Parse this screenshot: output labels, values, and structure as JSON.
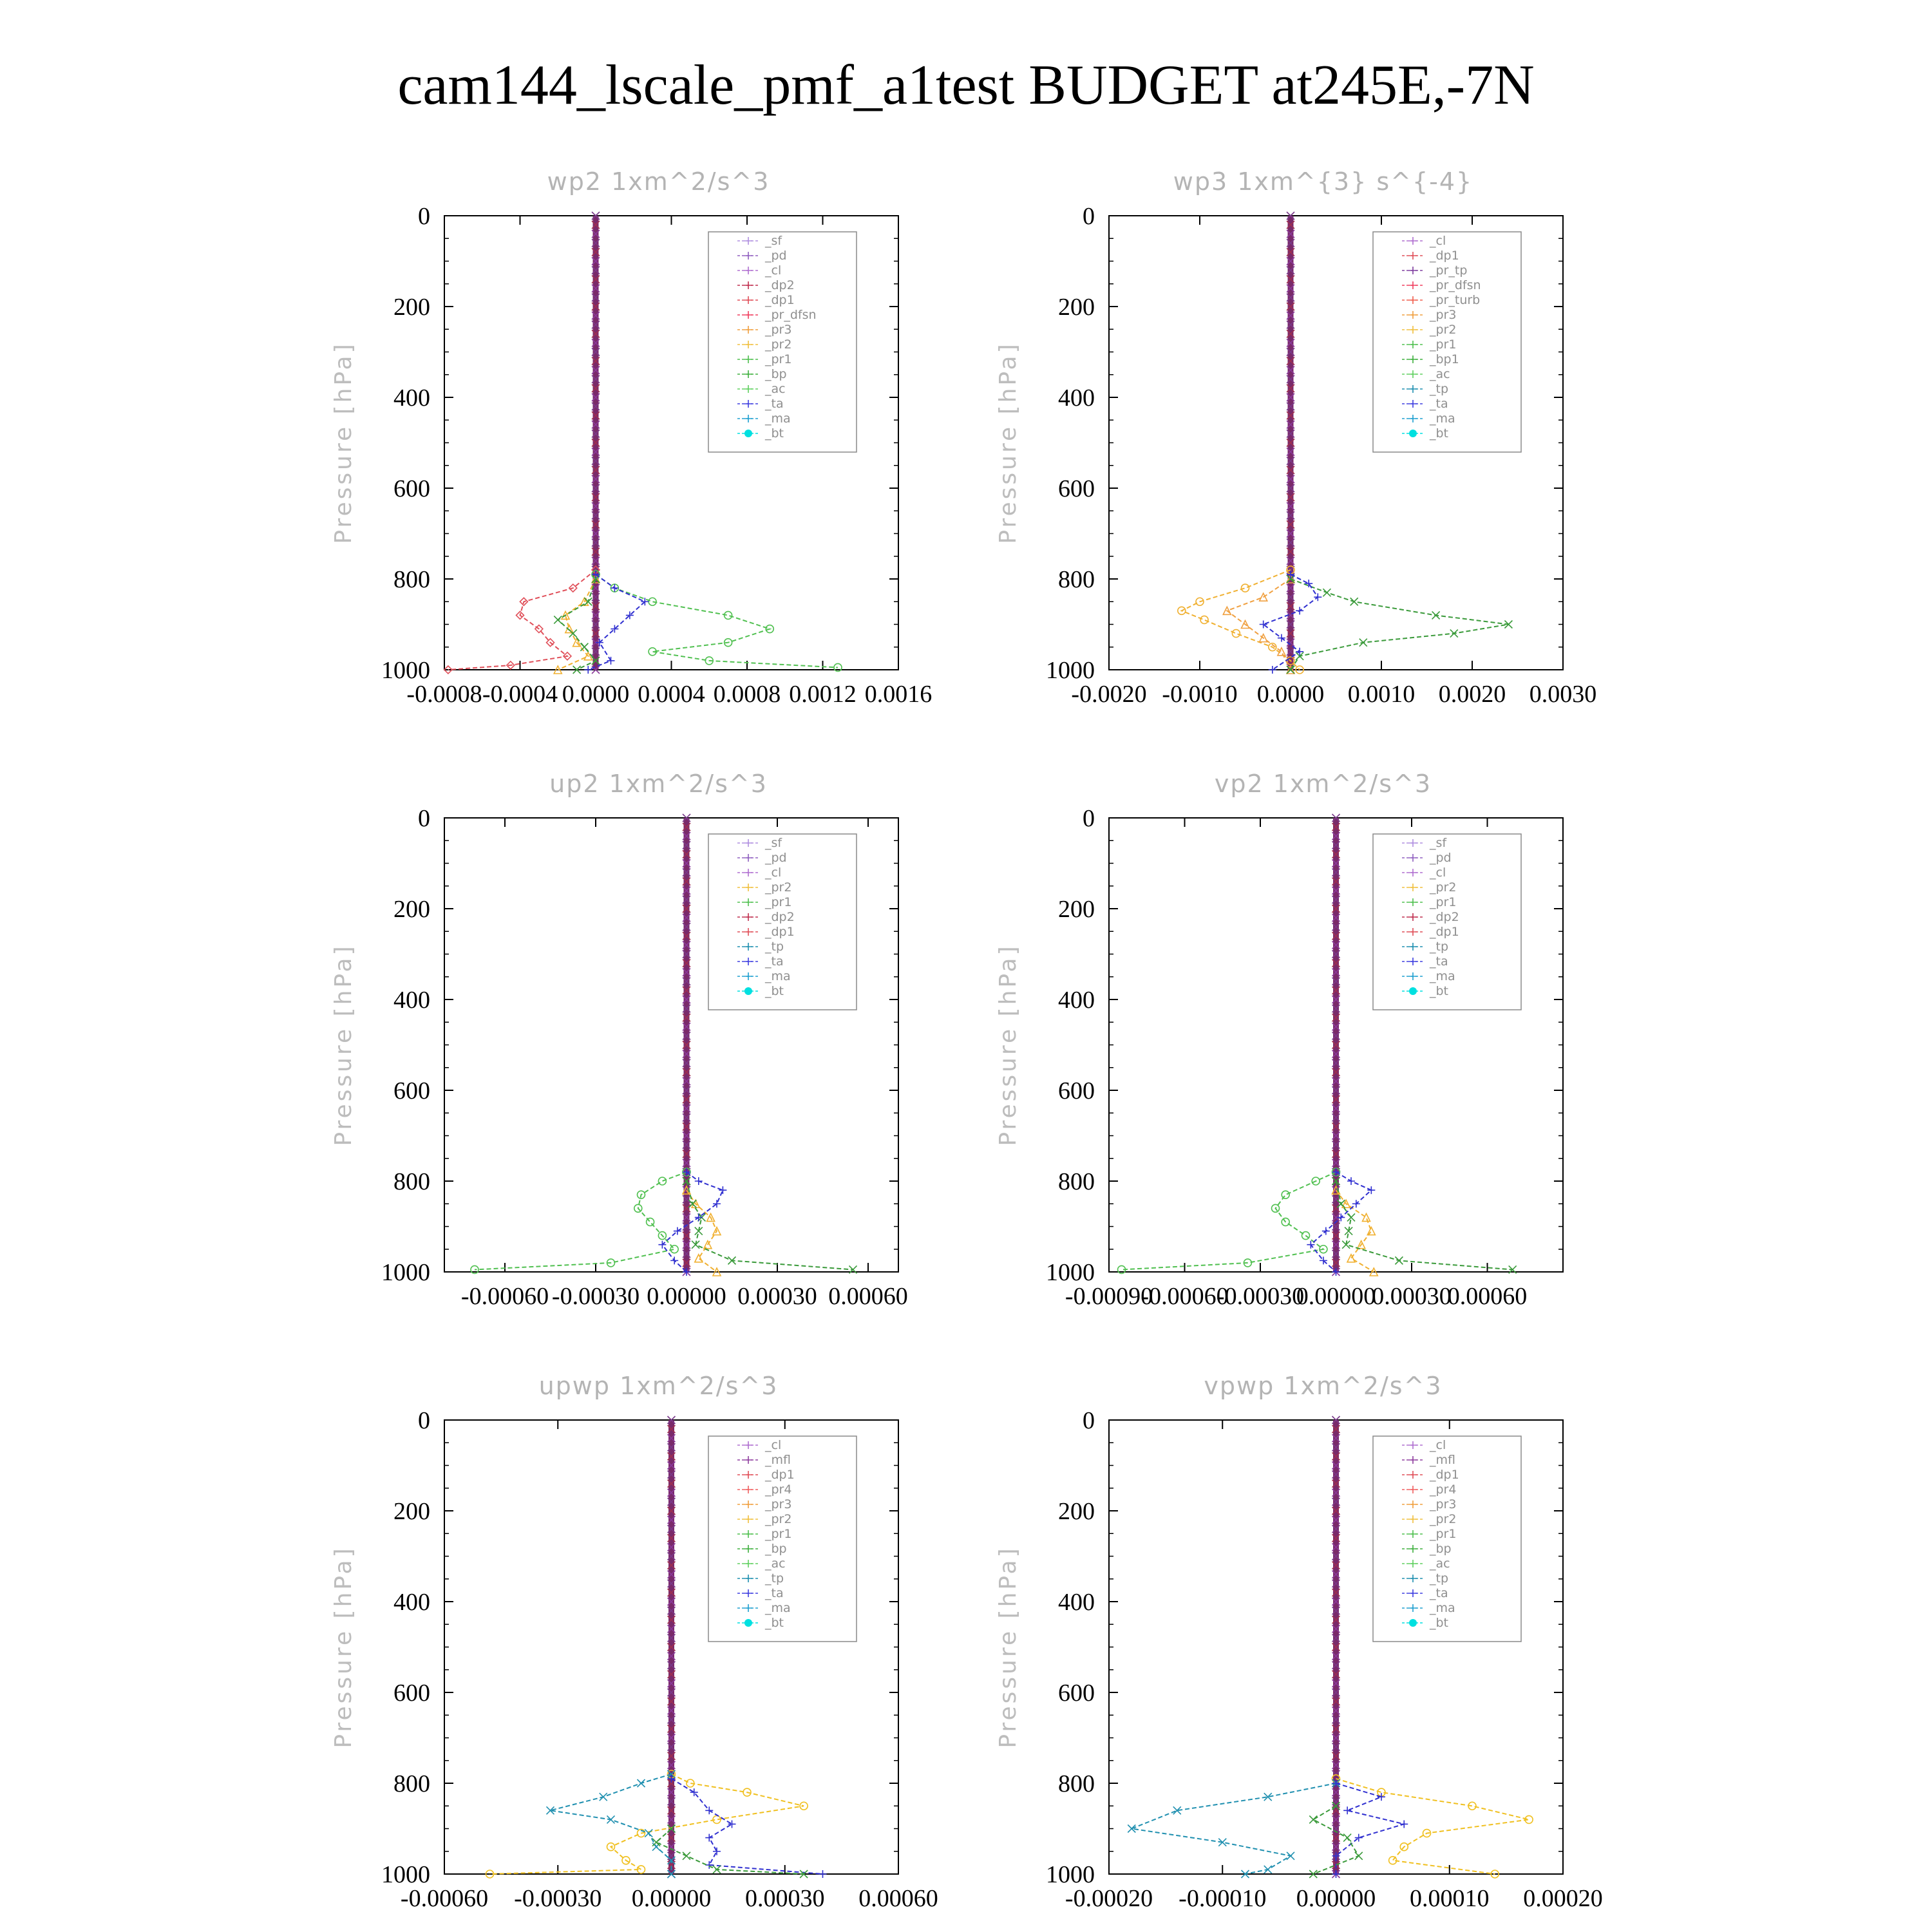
{
  "title": "cam144_lscale_pmf_a1test  BUDGET at245E,-7N",
  "chart_data": [
    {
      "type": "line",
      "title": "wp2   1xm^2/s^3",
      "ylabel": "Pressure [hPa]",
      "xlim": [
        -0.0008,
        0.0016
      ],
      "ylim": [
        0,
        1000
      ],
      "x_ticks": [
        "-0.0008",
        "-0.0004",
        "0.0000",
        "0.0004",
        "0.0008",
        "0.0012",
        "0.0016"
      ],
      "y_ticks": [
        "0",
        "200",
        "400",
        "600",
        "800",
        "1000"
      ],
      "legend": [
        "_sf",
        "_pd",
        "_cl",
        "_dp2",
        "_dp1",
        "_pr_dfsn",
        "_pr3",
        "_pr2",
        "_pr1",
        "_bp",
        "_ac",
        "_ta",
        "_ma",
        "_bt"
      ],
      "legend_position": "top-right",
      "series": [
        {
          "name": "_dp1",
          "color": "#e0505a",
          "marker": "diamond",
          "p": [
            780,
            820,
            850,
            880,
            910,
            940,
            970,
            990,
            1000
          ],
          "x": [
            0,
            -0.00012,
            -0.00038,
            -0.0004,
            -0.0003,
            -0.00024,
            -0.00015,
            -0.00045,
            -0.00078
          ]
        },
        {
          "name": "_pr3",
          "color": "#f0b030",
          "marker": "triangle",
          "p": [
            800,
            850,
            880,
            910,
            940,
            970,
            1000
          ],
          "x": [
            0,
            -6e-05,
            -0.00016,
            -0.00014,
            -0.0001,
            -4e-05,
            -0.0002
          ]
        },
        {
          "name": "_pr1",
          "color": "#3a9a3a",
          "marker": "x",
          "p": [
            800,
            850,
            890,
            920,
            950,
            980,
            1000
          ],
          "x": [
            0,
            -4e-05,
            -0.0002,
            -0.00012,
            -6e-05,
            0,
            -0.0001
          ]
        },
        {
          "name": "_bp",
          "color": "#50c050",
          "marker": "circle",
          "p": [
            790,
            820,
            850,
            880,
            910,
            940,
            960,
            980,
            995
          ],
          "x": [
            0,
            0.0001,
            0.0003,
            0.0007,
            0.00092,
            0.0007,
            0.0003,
            0.0006,
            0.00128
          ]
        },
        {
          "name": "_ta",
          "color": "#3030d0",
          "marker": "plus",
          "p": [
            790,
            820,
            850,
            880,
            910,
            940,
            980,
            1000
          ],
          "x": [
            0,
            0.0001,
            0.00026,
            0.00018,
            0.0001,
            2e-05,
            8e-05,
            -4e-05
          ]
        }
      ]
    },
    {
      "type": "line",
      "title": "wp3   1xm^{3} s^{-4}",
      "ylabel": "Pressure [hPa]",
      "xlim": [
        -0.002,
        0.003
      ],
      "ylim": [
        0,
        1000
      ],
      "x_ticks": [
        "-0.0020",
        "-0.0010",
        "0.0000",
        "0.0010",
        "0.0020",
        "0.0030"
      ],
      "y_ticks": [
        "0",
        "200",
        "400",
        "600",
        "800",
        "1000"
      ],
      "legend": [
        "_cl",
        "_dp1",
        "_pr_tp",
        "_pr_dfsn",
        "_pr_turb",
        "_pr3",
        "_pr2",
        "_pr1",
        "_bp1",
        "_ac",
        "_tp",
        "_ta",
        "_ma",
        "_bt"
      ],
      "legend_position": "top-right",
      "series": [
        {
          "name": "_pr2",
          "color": "#f0b030",
          "marker": "circle",
          "p": [
            780,
            820,
            850,
            870,
            890,
            920,
            950,
            980,
            1000
          ],
          "x": [
            0,
            -0.0005,
            -0.001,
            -0.0012,
            -0.00095,
            -0.0006,
            -0.0002,
            0,
            0.0001
          ]
        },
        {
          "name": "_pr3",
          "color": "#f0a040",
          "marker": "triangle",
          "p": [
            800,
            840,
            870,
            900,
            930,
            960,
            1000
          ],
          "x": [
            0,
            -0.0003,
            -0.0007,
            -0.0005,
            -0.0003,
            -0.0001,
            0
          ]
        },
        {
          "name": "_bp1",
          "color": "#3a9a3a",
          "marker": "x",
          "p": [
            800,
            830,
            850,
            880,
            900,
            920,
            940,
            970,
            1000
          ],
          "x": [
            0,
            0.0004,
            0.0007,
            0.0016,
            0.0024,
            0.0018,
            0.0008,
            0.0001,
            0
          ]
        },
        {
          "name": "_ta",
          "color": "#3030d0",
          "marker": "plus",
          "p": [
            790,
            810,
            840,
            870,
            900,
            930,
            960,
            1000
          ],
          "x": [
            0,
            0.0002,
            0.0003,
            0.0001,
            -0.0003,
            -0.0001,
            0.0001,
            -0.0002
          ]
        }
      ]
    },
    {
      "type": "line",
      "title": "up2   1xm^2/s^3",
      "ylabel": "Pressure [hPa]",
      "xlim": [
        -0.0008,
        0.0007
      ],
      "ylim": [
        0,
        1000
      ],
      "x_ticks": [
        "-0.00060",
        "-0.00030",
        "0.00000",
        "0.00030",
        "0.00060"
      ],
      "y_ticks": [
        "0",
        "200",
        "400",
        "600",
        "800",
        "1000"
      ],
      "legend": [
        "_sf",
        "_pd",
        "_cl",
        "_pr2",
        "_pr1",
        "_dp2",
        "_dp1",
        "_tp",
        "_ta",
        "_ma",
        "_bt"
      ],
      "legend_position": "top-right",
      "series": [
        {
          "name": "_dp1",
          "color": "#50c050",
          "marker": "circle",
          "p": [
            780,
            800,
            830,
            860,
            890,
            920,
            950,
            980,
            995
          ],
          "x": [
            0,
            -8e-05,
            -0.00015,
            -0.00016,
            -0.00012,
            -8e-05,
            -4e-05,
            -0.00025,
            -0.0007
          ]
        },
        {
          "name": "_pr2",
          "color": "#f0b030",
          "marker": "triangle",
          "p": [
            820,
            850,
            880,
            910,
            940,
            970,
            1000
          ],
          "x": [
            0,
            3e-05,
            8e-05,
            0.0001,
            7e-05,
            4e-05,
            0.0001
          ]
        },
        {
          "name": "_dp2",
          "color": "#3a9a3a",
          "marker": "x",
          "p": [
            800,
            850,
            880,
            910,
            940,
            975,
            995
          ],
          "x": [
            0,
            2e-05,
            5e-05,
            4e-05,
            3e-05,
            0.00015,
            0.00055
          ]
        },
        {
          "name": "_ta",
          "color": "#3030d0",
          "marker": "plus",
          "p": [
            780,
            800,
            820,
            850,
            880,
            910,
            940,
            975,
            1000
          ],
          "x": [
            0,
            4e-05,
            0.00012,
            0.0001,
            4e-05,
            -3e-05,
            -8e-05,
            -4e-05,
            0
          ]
        }
      ]
    },
    {
      "type": "line",
      "title": "vp2   1xm^2/s^3",
      "ylabel": "Pressure [hPa]",
      "xlim": [
        -0.0009,
        0.0009
      ],
      "ylim": [
        0,
        1000
      ],
      "x_ticks": [
        "-0.00090",
        "-0.00060",
        "-0.00030",
        "0.00000",
        "0.00030",
        "0.00060"
      ],
      "y_ticks": [
        "0",
        "200",
        "400",
        "600",
        "800",
        "1000"
      ],
      "legend": [
        "_sf",
        "_pd",
        "_cl",
        "_pr2",
        "_pr1",
        "_dp2",
        "_dp1",
        "_tp",
        "_ta",
        "_ma",
        "_bt"
      ],
      "legend_position": "top-right",
      "series": [
        {
          "name": "_dp1",
          "color": "#50c050",
          "marker": "circle",
          "p": [
            780,
            800,
            830,
            860,
            890,
            920,
            950,
            980,
            995
          ],
          "x": [
            0,
            -8e-05,
            -0.0002,
            -0.00024,
            -0.0002,
            -0.00012,
            -5e-05,
            -0.00035,
            -0.00085
          ]
        },
        {
          "name": "_pr2",
          "color": "#f0b030",
          "marker": "triangle",
          "p": [
            820,
            850,
            880,
            910,
            940,
            970,
            1000
          ],
          "x": [
            0,
            4e-05,
            0.00012,
            0.00014,
            0.0001,
            6e-05,
            0.00015
          ]
        },
        {
          "name": "_dp2",
          "color": "#3a9a3a",
          "marker": "x",
          "p": [
            800,
            850,
            880,
            910,
            940,
            975,
            995
          ],
          "x": [
            0,
            2e-05,
            6e-05,
            5e-05,
            4e-05,
            0.00025,
            0.0007
          ]
        },
        {
          "name": "_ta",
          "color": "#3030d0",
          "marker": "plus",
          "p": [
            780,
            800,
            820,
            850,
            880,
            910,
            940,
            975,
            1000
          ],
          "x": [
            0,
            6e-05,
            0.00014,
            8e-05,
            2e-05,
            -4e-05,
            -0.0001,
            -5e-05,
            0
          ]
        }
      ]
    },
    {
      "type": "line",
      "title": "upwp   1xm^2/s^3",
      "ylabel": "Pressure [hPa]",
      "xlim": [
        -0.0006,
        0.0006
      ],
      "ylim": [
        0,
        1000
      ],
      "x_ticks": [
        "-0.00060",
        "-0.00030",
        "0.00000",
        "0.00030",
        "0.00060"
      ],
      "y_ticks": [
        "0",
        "200",
        "400",
        "600",
        "800",
        "1000"
      ],
      "legend": [
        "_cl",
        "_mfl",
        "_dp1",
        "_pr4",
        "_pr3",
        "_pr2",
        "_pr1",
        "_bp",
        "_ac",
        "_tp",
        "_ta",
        "_ma",
        "_bt"
      ],
      "legend_position": "top-right",
      "series": [
        {
          "name": "_pr1",
          "color": "#f0c020",
          "marker": "circle",
          "p": [
            780,
            800,
            820,
            850,
            880,
            910,
            940,
            970,
            990,
            1000
          ],
          "x": [
            0,
            5e-05,
            0.0002,
            0.00035,
            0.00012,
            -8e-05,
            -0.00016,
            -0.00012,
            -8e-05,
            -0.00048
          ]
        },
        {
          "name": "_tp",
          "color": "#2090b0",
          "marker": "x",
          "p": [
            780,
            800,
            830,
            860,
            880,
            910,
            940,
            970,
            1000
          ],
          "x": [
            0,
            -8e-05,
            -0.00018,
            -0.00032,
            -0.00016,
            -6e-05,
            -4e-05,
            0,
            0
          ]
        },
        {
          "name": "_ta",
          "color": "#3030d0",
          "marker": "plus",
          "p": [
            790,
            820,
            860,
            890,
            920,
            950,
            980,
            1000
          ],
          "x": [
            0,
            6e-05,
            0.0001,
            0.00016,
            0.0001,
            0.00012,
            0.0001,
            0.0004
          ]
        },
        {
          "name": "_bp",
          "color": "#3a9a3a",
          "marker": "x",
          "p": [
            900,
            930,
            960,
            990,
            1000
          ],
          "x": [
            0,
            -4e-05,
            4e-05,
            0.00012,
            0.00035
          ]
        }
      ]
    },
    {
      "type": "line",
      "title": "vpwp   1xm^2/s^3",
      "ylabel": "Pressure [hPa]",
      "xlim": [
        -0.0002,
        0.0002
      ],
      "ylim": [
        0,
        1000
      ],
      "x_ticks": [
        "-0.00020",
        "-0.00010",
        "0.00000",
        "0.00010",
        "0.00020"
      ],
      "y_ticks": [
        "0",
        "200",
        "400",
        "600",
        "800",
        "1000"
      ],
      "legend": [
        "_cl",
        "_mfl",
        "_dp1",
        "_pr4",
        "_pr3",
        "_pr2",
        "_pr1",
        "_bp",
        "_ac",
        "_tp",
        "_ta",
        "_ma",
        "_bt"
      ],
      "legend_position": "top-right",
      "series": [
        {
          "name": "_pr1",
          "color": "#f0c020",
          "marker": "circle",
          "p": [
            790,
            820,
            850,
            880,
            910,
            940,
            970,
            1000
          ],
          "x": [
            0,
            4e-05,
            0.00012,
            0.00017,
            8e-05,
            6e-05,
            5e-05,
            0.00014
          ]
        },
        {
          "name": "_tp",
          "color": "#2090b0",
          "marker": "x",
          "p": [
            800,
            830,
            860,
            900,
            930,
            960,
            990,
            1000
          ],
          "x": [
            0,
            -6e-05,
            -0.00014,
            -0.00018,
            -0.0001,
            -4e-05,
            -6e-05,
            -8e-05
          ]
        },
        {
          "name": "_ta",
          "color": "#3030d0",
          "marker": "plus",
          "p": [
            800,
            830,
            860,
            890,
            920,
            960,
            1000
          ],
          "x": [
            0,
            4e-05,
            1e-05,
            6e-05,
            2e-05,
            0,
            0
          ]
        },
        {
          "name": "_bp",
          "color": "#3a9a3a",
          "marker": "x",
          "p": [
            850,
            880,
            920,
            960,
            1000
          ],
          "x": [
            0,
            -2e-05,
            1e-05,
            2e-05,
            -2e-05
          ]
        }
      ]
    }
  ]
}
